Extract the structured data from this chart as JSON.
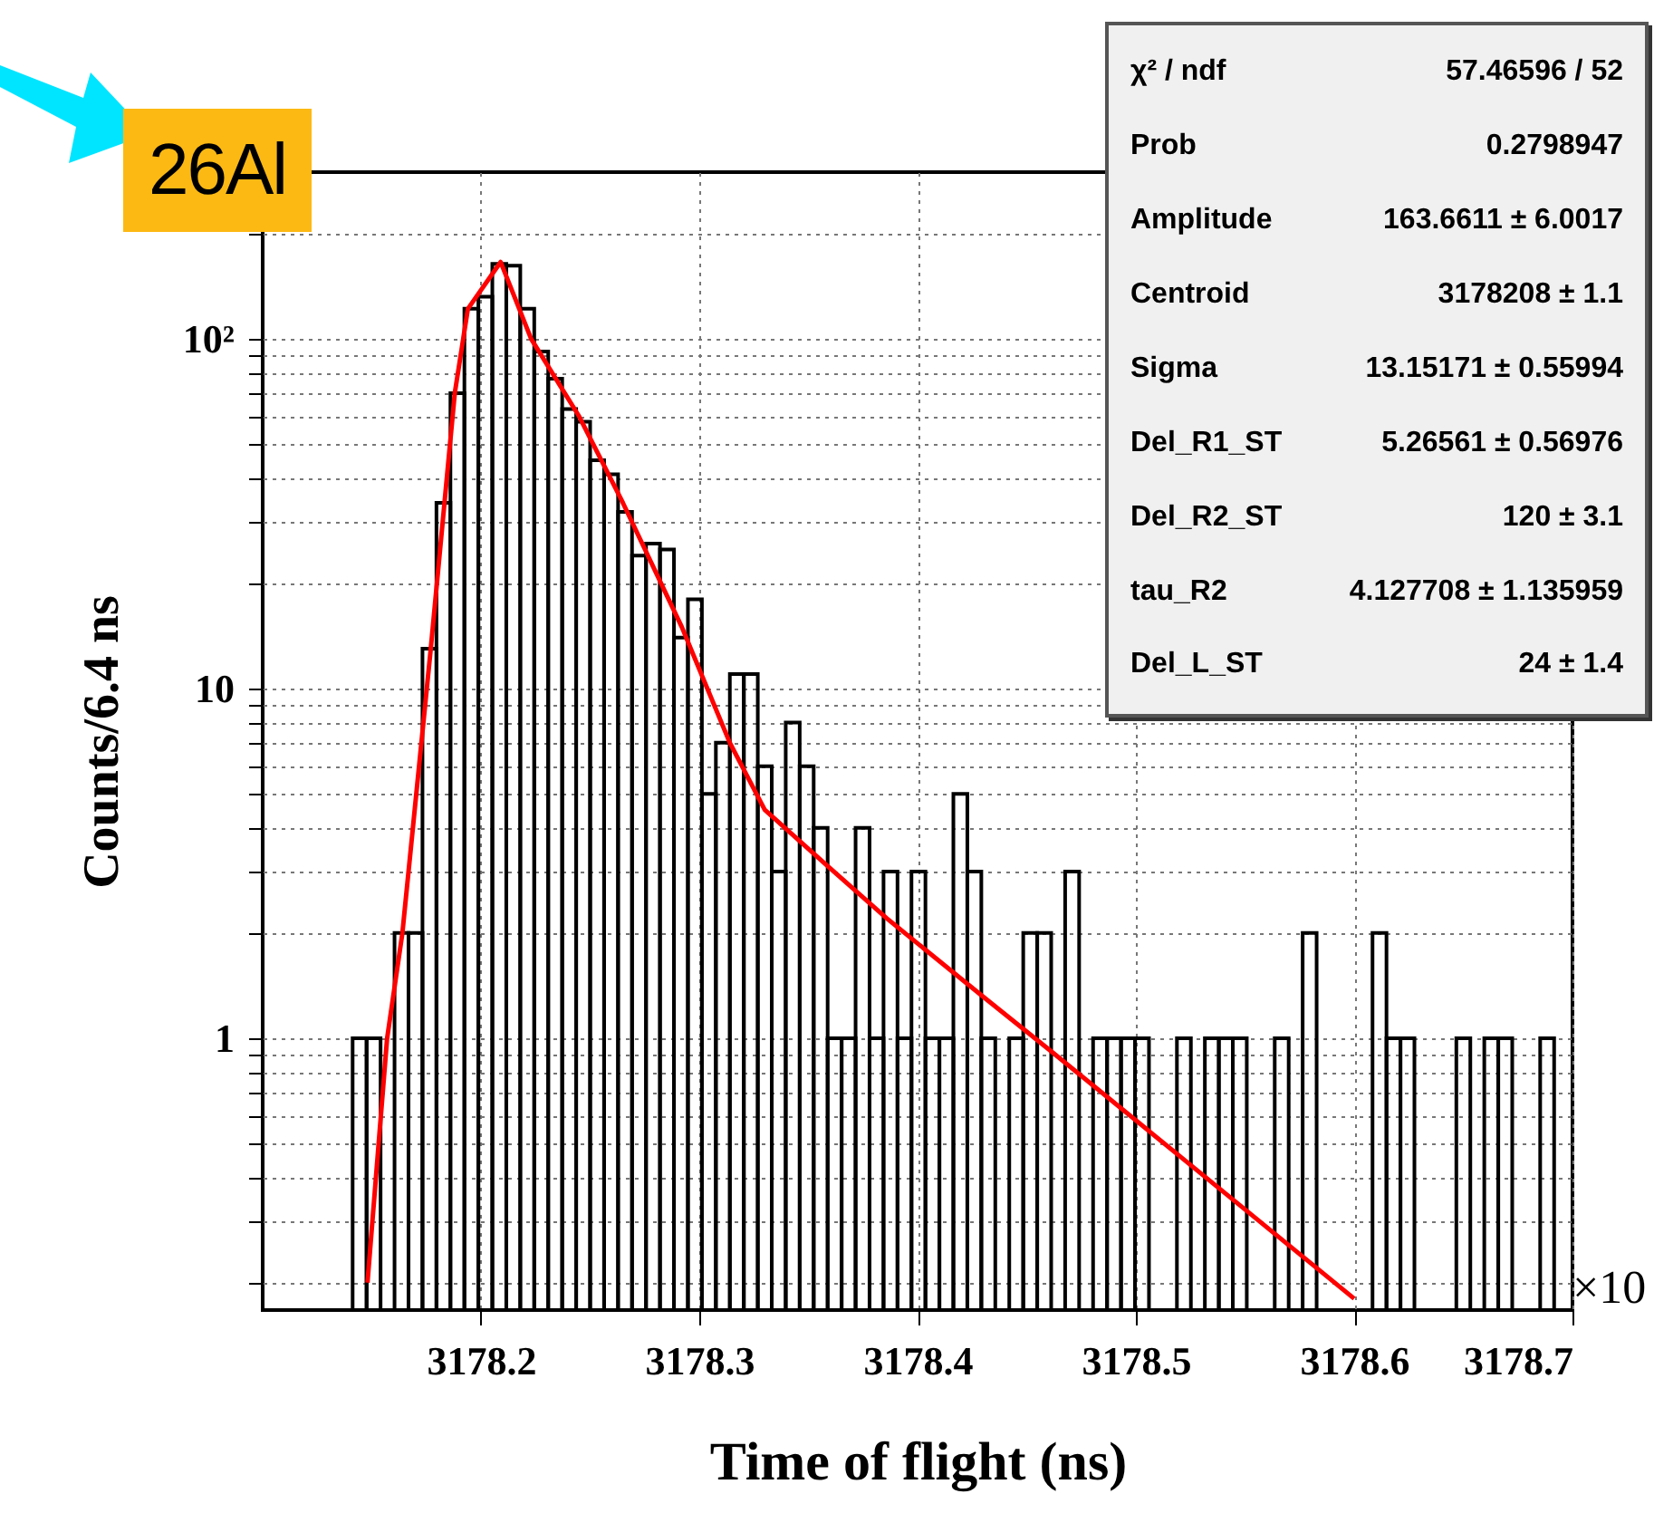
{
  "chart_data": {
    "type": "histogram",
    "xlabel": "Time of flight (ns)",
    "ylabel": "Counts/6.4 ns",
    "annotations": [
      "26Al",
      "×10",
      "χ² / ndf",
      "57.46596 / 52",
      "Prob",
      "0.2798947",
      "Amplitude",
      "163.6611 ± 6.0017",
      "Centroid",
      "3178208 ± 1.1",
      "Sigma",
      "13.15171 ± 0.55994",
      "Del_R1_ST",
      "5.26561 ± 0.56976",
      "Del_R2_ST",
      "120 ± 3.1",
      "tau_R2",
      "4.127708 ± 1.135959",
      "Del_L_ST",
      "24 ± 1.4"
    ],
    "bins": [
      3178.1412,
      3178.1476,
      3178.154,
      3178.1604,
      3178.1668,
      3178.1732,
      3178.1796,
      3178.186,
      3178.1924,
      3178.1988,
      3178.2052,
      3178.2116,
      3178.218,
      3178.2244,
      3178.2308,
      3178.2372,
      3178.2436,
      3178.25,
      3178.2564,
      3178.2628,
      3178.2692,
      3178.2756,
      3178.282,
      3178.2884,
      3178.2948,
      3178.3012,
      3178.3076,
      3178.314,
      3178.3204,
      3178.3268,
      3178.3332,
      3178.3396,
      3178.346,
      3178.3524,
      3178.3588,
      3178.3652,
      3178.3716,
      3178.378,
      3178.3844,
      3178.3908,
      3178.3972,
      3178.4036,
      3178.41,
      3178.4164,
      3178.4228,
      3178.4292,
      3178.4356,
      3178.442,
      3178.4484,
      3178.4548,
      3178.4612,
      3178.4676,
      3178.474,
      3178.4804,
      3178.4868,
      3178.4932,
      3178.4996,
      3178.506,
      3178.5124,
      3178.5188,
      3178.5252,
      3178.5316,
      3178.538,
      3178.5444,
      3178.5508,
      3178.5572,
      3178.5636,
      3178.57,
      3178.5764,
      3178.5828,
      3178.5892,
      3178.5956,
      3178.602,
      3178.6084,
      3178.6148,
      3178.6212,
      3178.6276,
      3178.634,
      3178.6404,
      3178.6468,
      3178.6532,
      3178.6596,
      3178.666,
      3178.6724,
      3178.6788,
      3178.6852,
      3178.6916,
      3178.698
    ],
    "series": [
      {
        "color": "#000000",
        "values": [
          1,
          1,
          null,
          2,
          2,
          13,
          34,
          70,
          122,
          132,
          164,
          162,
          122,
          92,
          77,
          63,
          58,
          45,
          41,
          32,
          24,
          26,
          25,
          14,
          18,
          5,
          7,
          11,
          11,
          6,
          3,
          8,
          6,
          4,
          1,
          1,
          4,
          1,
          3,
          1,
          3,
          1,
          1,
          5,
          3,
          1,
          null,
          1,
          2,
          2,
          null,
          3,
          null,
          1,
          1,
          1,
          1,
          null,
          null,
          1,
          null,
          1,
          1,
          1,
          null,
          null,
          1,
          null,
          2,
          null,
          null,
          null,
          null,
          2,
          1,
          1,
          null,
          null,
          null,
          1,
          null,
          1,
          1,
          null,
          null,
          1,
          null
        ]
      },
      {
        "type": "line",
        "color": "#ff0000",
        "x": [
          3178.148,
          3178.157,
          3178.164,
          3178.177,
          3178.188,
          3178.194,
          3178.209,
          3178.223,
          3178.245,
          3178.265,
          3178.292,
          3178.314,
          3178.33,
          3178.359,
          3178.386,
          3178.431,
          3178.461,
          3178.522,
          3178.6
        ],
        "values": [
          0.2,
          1,
          2,
          13,
          70,
          122,
          166,
          100,
          60,
          34,
          15,
          7,
          4.5,
          3.1,
          2.2,
          1.3,
          0.92,
          0.45,
          0.18
        ]
      }
    ],
    "xlim": [
      3178.1,
      3178.7
    ],
    "xticks": [
      3178.2,
      3178.3,
      3178.4,
      3178.5,
      3178.6,
      3178.7
    ],
    "ylim": [
      0.167,
      300
    ],
    "log": true,
    "yticks": [
      {
        "value": 0.2,
        "label": null
      },
      {
        "value": 0.3,
        "label": null
      },
      {
        "value": 0.4,
        "label": null
      },
      {
        "value": 0.5,
        "label": null
      },
      {
        "value": 0.6,
        "label": null
      },
      {
        "value": 0.7,
        "label": null
      },
      {
        "value": 0.8,
        "label": null
      },
      {
        "value": 0.9,
        "label": null
      },
      1,
      {
        "value": 2,
        "label": null
      },
      {
        "value": 3,
        "label": null
      },
      {
        "value": 4,
        "label": null
      },
      {
        "value": 5,
        "label": null
      },
      {
        "value": 6,
        "label": null
      },
      {
        "value": 7,
        "label": null
      },
      {
        "value": 8,
        "label": null
      },
      {
        "value": 9,
        "label": null
      },
      10,
      {
        "value": 20,
        "label": null
      },
      {
        "value": 30,
        "label": null
      },
      {
        "value": 40,
        "label": null
      },
      {
        "value": 50,
        "label": null
      },
      {
        "value": 60,
        "label": null
      },
      {
        "value": 70,
        "label": null
      },
      {
        "value": 80,
        "label": null
      },
      {
        "value": 90,
        "label": null
      },
      {
        "value": 100,
        "label": "10²"
      },
      {
        "value": 200,
        "label": null
      }
    ],
    "grid": true,
    "line_style": "solid"
  }
}
